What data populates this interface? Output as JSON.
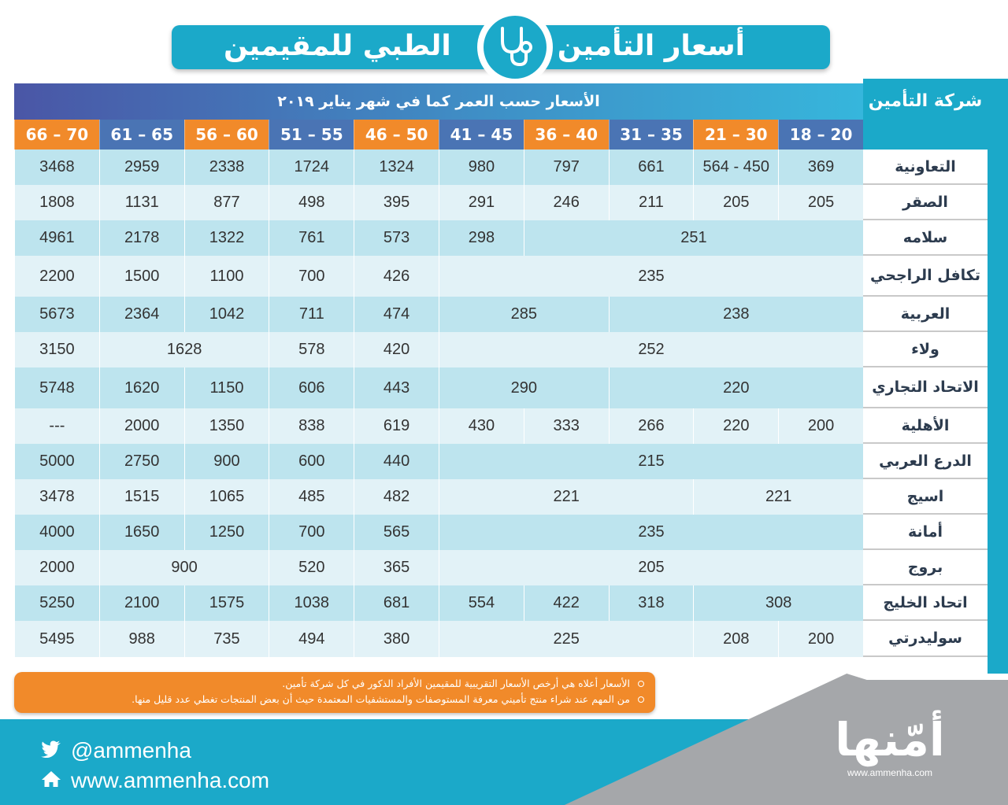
{
  "title": {
    "part_right": "أسعار التأمين",
    "part_left": "الطبي للمقيمين",
    "icon": "stethoscope-icon"
  },
  "table": {
    "header_caption": "الأسعار حسب العمر كما في شهر يناير ٢٠١٩",
    "company_header": "شركة التأمين",
    "age_groups": [
      "18 – 20",
      "21 – 30",
      "31 – 35",
      "36 – 40",
      "41 – 45",
      "46 – 50",
      "51 – 55",
      "56 – 60",
      "61 – 65",
      "66 – 70"
    ],
    "age_group_colors": [
      "blue",
      "orange",
      "blue",
      "orange",
      "blue",
      "orange",
      "blue",
      "orange",
      "blue",
      "orange"
    ],
    "rows": [
      {
        "company": "التعاونية",
        "cells": [
          {
            "v": "369",
            "span": 1
          },
          {
            "v": "564 - 450",
            "span": 1
          },
          {
            "v": "661",
            "span": 1
          },
          {
            "v": "797",
            "span": 1
          },
          {
            "v": "980",
            "span": 1
          },
          {
            "v": "1324",
            "span": 1
          },
          {
            "v": "1724",
            "span": 1
          },
          {
            "v": "2338",
            "span": 1
          },
          {
            "v": "2959",
            "span": 1
          },
          {
            "v": "3468",
            "span": 1
          }
        ]
      },
      {
        "company": "الصقر",
        "cells": [
          {
            "v": "205",
            "span": 1
          },
          {
            "v": "205",
            "span": 1
          },
          {
            "v": "211",
            "span": 1
          },
          {
            "v": "246",
            "span": 1
          },
          {
            "v": "291",
            "span": 1
          },
          {
            "v": "395",
            "span": 1
          },
          {
            "v": "498",
            "span": 1
          },
          {
            "v": "877",
            "span": 1
          },
          {
            "v": "1131",
            "span": 1
          },
          {
            "v": "1808",
            "span": 1
          }
        ]
      },
      {
        "company": "سلامه",
        "cells": [
          {
            "v": "251",
            "span": 4
          },
          {
            "v": "298",
            "span": 1
          },
          {
            "v": "573",
            "span": 1
          },
          {
            "v": "761",
            "span": 1
          },
          {
            "v": "1322",
            "span": 1
          },
          {
            "v": "2178",
            "span": 1
          },
          {
            "v": "4961",
            "span": 1
          }
        ]
      },
      {
        "company": "تكافل الراجحي",
        "cells": [
          {
            "v": "235",
            "span": 5
          },
          {
            "v": "426",
            "span": 1
          },
          {
            "v": "700",
            "span": 1
          },
          {
            "v": "1100",
            "span": 1
          },
          {
            "v": "1500",
            "span": 1
          },
          {
            "v": "2200",
            "span": 1
          }
        ]
      },
      {
        "company": "العربية",
        "cells": [
          {
            "v": "238",
            "span": 3
          },
          {
            "v": "285",
            "span": 2
          },
          {
            "v": "474",
            "span": 1
          },
          {
            "v": "711",
            "span": 1
          },
          {
            "v": "1042",
            "span": 1
          },
          {
            "v": "2364",
            "span": 1
          },
          {
            "v": "5673",
            "span": 1
          }
        ]
      },
      {
        "company": "ولاء",
        "cells": [
          {
            "v": "252",
            "span": 5
          },
          {
            "v": "420",
            "span": 1
          },
          {
            "v": "578",
            "span": 1
          },
          {
            "v": "1628",
            "span": 2
          },
          {
            "v": "3150",
            "span": 1
          }
        ]
      },
      {
        "company": "الاتحاد التجاري",
        "cells": [
          {
            "v": "220",
            "span": 3
          },
          {
            "v": "290",
            "span": 2
          },
          {
            "v": "443",
            "span": 1
          },
          {
            "v": "606",
            "span": 1
          },
          {
            "v": "1150",
            "span": 1
          },
          {
            "v": "1620",
            "span": 1
          },
          {
            "v": "5748",
            "span": 1
          }
        ]
      },
      {
        "company": "الأهلية",
        "cells": [
          {
            "v": "200",
            "span": 1
          },
          {
            "v": "220",
            "span": 1
          },
          {
            "v": "266",
            "span": 1
          },
          {
            "v": "333",
            "span": 1
          },
          {
            "v": "430",
            "span": 1
          },
          {
            "v": "619",
            "span": 1
          },
          {
            "v": "838",
            "span": 1
          },
          {
            "v": "1350",
            "span": 1
          },
          {
            "v": "2000",
            "span": 1
          },
          {
            "v": "---",
            "span": 1
          }
        ]
      },
      {
        "company": "الدرع العربي",
        "cells": [
          {
            "v": "215",
            "span": 5
          },
          {
            "v": "440",
            "span": 1
          },
          {
            "v": "600",
            "span": 1
          },
          {
            "v": "900",
            "span": 1
          },
          {
            "v": "2750",
            "span": 1
          },
          {
            "v": "5000",
            "span": 1
          }
        ]
      },
      {
        "company": "اسيج",
        "cells": [
          {
            "v": "221",
            "span": 2
          },
          {
            "v": "221",
            "span": 3
          },
          {
            "v": "482",
            "span": 1
          },
          {
            "v": "485",
            "span": 1
          },
          {
            "v": "1065",
            "span": 1
          },
          {
            "v": "1515",
            "span": 1
          },
          {
            "v": "3478",
            "span": 1
          }
        ]
      },
      {
        "company": "أمانة",
        "cells": [
          {
            "v": "235",
            "span": 5
          },
          {
            "v": "565",
            "span": 1
          },
          {
            "v": "700",
            "span": 1
          },
          {
            "v": "1250",
            "span": 1
          },
          {
            "v": "1650",
            "span": 1
          },
          {
            "v": "4000",
            "span": 1
          }
        ]
      },
      {
        "company": "بروج",
        "cells": [
          {
            "v": "205",
            "span": 5
          },
          {
            "v": "365",
            "span": 1
          },
          {
            "v": "520",
            "span": 1
          },
          {
            "v": "900",
            "span": 2
          },
          {
            "v": "2000",
            "span": 1
          }
        ]
      },
      {
        "company": "اتحاد الخليج",
        "cells": [
          {
            "v": "308",
            "span": 2
          },
          {
            "v": "318",
            "span": 1
          },
          {
            "v": "422",
            "span": 1
          },
          {
            "v": "554",
            "span": 1
          },
          {
            "v": "681",
            "span": 1
          },
          {
            "v": "1038",
            "span": 1
          },
          {
            "v": "1575",
            "span": 1
          },
          {
            "v": "2100",
            "span": 1
          },
          {
            "v": "5250",
            "span": 1
          }
        ]
      },
      {
        "company": "سوليدرتي",
        "cells": [
          {
            "v": "200",
            "span": 1
          },
          {
            "v": "208",
            "span": 1
          },
          {
            "v": "225",
            "span": 3
          },
          {
            "v": "380",
            "span": 1
          },
          {
            "v": "494",
            "span": 1
          },
          {
            "v": "735",
            "span": 1
          },
          {
            "v": "988",
            "span": 1
          },
          {
            "v": "5495",
            "span": 1
          }
        ]
      }
    ]
  },
  "notes": [
    "الأسعار أعلاه هي أرخص الأسعار التقريبية للمقيمين الأفراد الذكور في كل شركة تأمين.",
    "من المهم عند شراء منتج تأميني معرفة المستوصفات والمستشفيات المعتمدة حيث أن بعض المنتجات تغطي عدد قليل منها."
  ],
  "footer": {
    "twitter_handle": "@ammenha",
    "website": "www.ammenha.com",
    "logo_text": "أمّنها",
    "logo_url": "www.ammenha.com"
  },
  "colors": {
    "accent_teal": "#1ba9c9",
    "accent_orange": "#f18a2a",
    "age_blue": "#4a74b4",
    "row_dark": "#bde4ee",
    "row_light": "#e2f2f7",
    "footer_grey": "#a5a7aa"
  }
}
